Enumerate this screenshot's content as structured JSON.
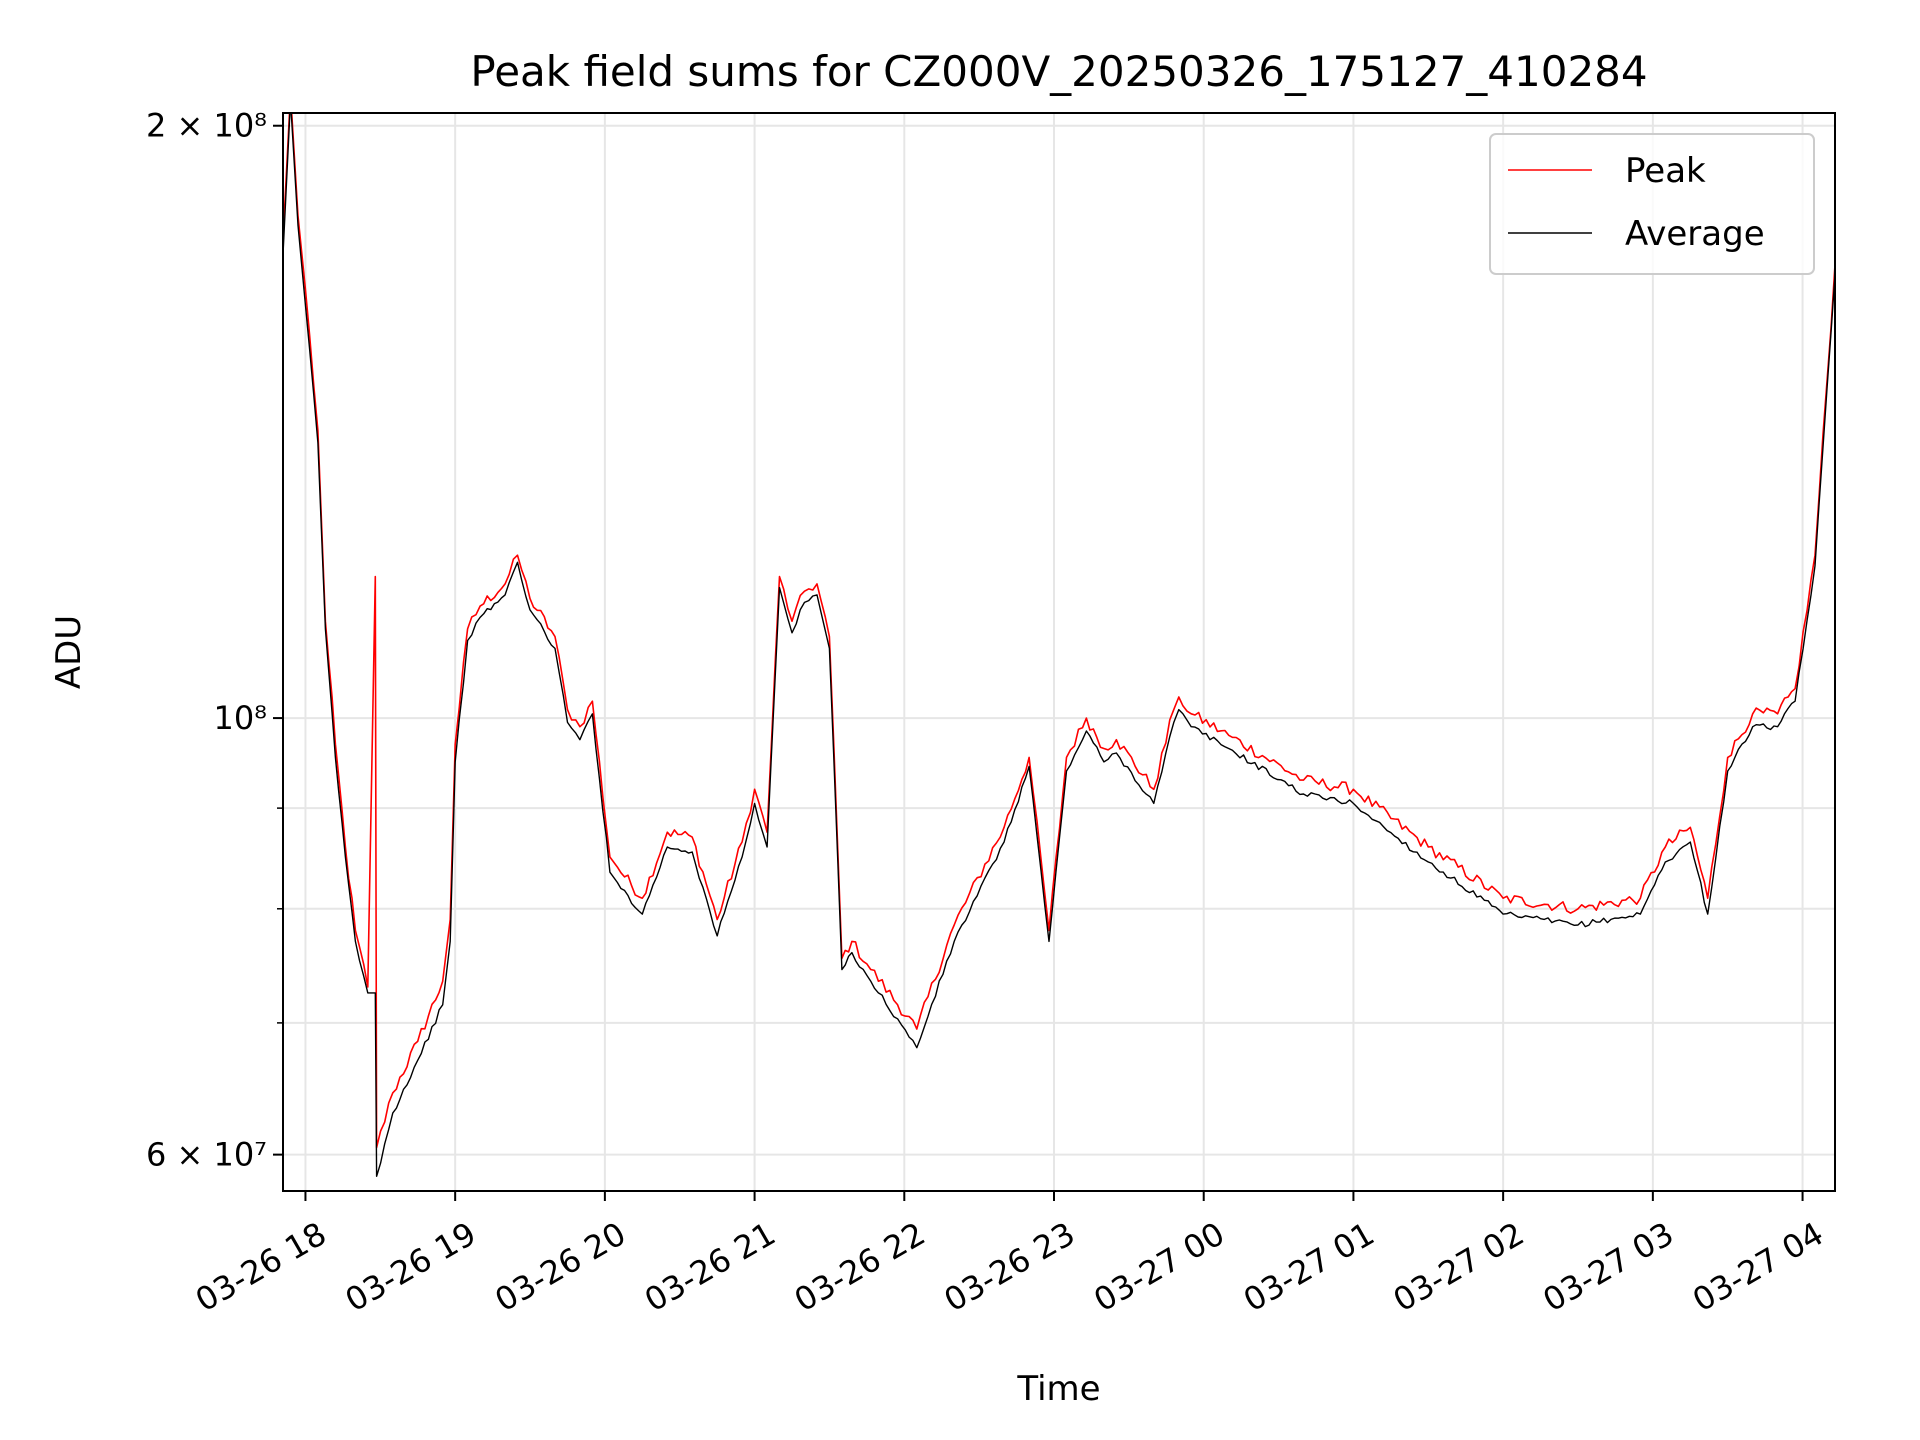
{
  "chart_data": {
    "type": "line",
    "title": "Peak field sums for CZ000V_20250326_175127_410284",
    "xlabel": "Time",
    "ylabel": "ADU",
    "yscale": "log",
    "ylim": [
      57500000,
      203000000
    ],
    "xlim": [
      "03-26 17:51",
      "03-27 04:13"
    ],
    "grid": true,
    "legend_position": "upper-right",
    "colors": {
      "peak": "#ff0000",
      "average": "#000000",
      "grid": "#e6e6e6"
    },
    "x_ticks": [
      "03-26 18",
      "03-26 19",
      "03-26 20",
      "03-26 21",
      "03-26 22",
      "03-26 23",
      "03-27 00",
      "03-27 01",
      "03-27 02",
      "03-27 03",
      "03-27 04"
    ],
    "y_ticks_labeled": [
      {
        "value": 60000000,
        "label": "6 × 10⁷"
      },
      {
        "value": 100000000,
        "label": "10⁸"
      },
      {
        "value": 200000000,
        "label": "2 × 10⁸"
      }
    ],
    "y_ticks_minor": [
      70000000,
      80000000,
      90000000
    ],
    "x": [
      "03-26 17:51",
      "03-26 17:54",
      "03-26 17:57",
      "03-26 18:00",
      "03-26 18:05",
      "03-26 18:08",
      "03-26 18:12",
      "03-26 18:16",
      "03-26 18:20",
      "03-26 18:25",
      "03-26 18:28",
      "03-26 18:28:30",
      "03-26 18:35",
      "03-26 18:45",
      "03-26 18:55",
      "03-26 18:58",
      "03-26 19:00",
      "03-26 19:05",
      "03-26 19:10",
      "03-26 19:20",
      "03-26 19:25",
      "03-26 19:30",
      "03-26 19:40",
      "03-26 19:45",
      "03-26 19:50",
      "03-26 19:55",
      "03-26 20:02",
      "03-26 20:05",
      "03-26 20:15",
      "03-26 20:25",
      "03-26 20:35",
      "03-26 20:45",
      "03-26 20:55",
      "03-26 21:00",
      "03-26 21:05",
      "03-26 21:10",
      "03-26 21:15",
      "03-26 21:20",
      "03-26 21:25",
      "03-26 21:30",
      "03-26 21:35",
      "03-26 21:39",
      "03-26 21:45",
      "03-26 22:05",
      "03-26 22:20",
      "03-26 22:40",
      "03-26 22:50",
      "03-26 22:58",
      "03-26 23:05",
      "03-26 23:13",
      "03-26 23:20",
      "03-26 23:25",
      "03-26 23:40",
      "03-26 23:48",
      "03-26 23:50",
      "03-26 23:55",
      "03-27 00:10",
      "03-27 00:40",
      "03-27 01:00",
      "03-27 01:30",
      "03-27 02:00",
      "03-27 02:30",
      "03-27 02:55",
      "03-27 03:05",
      "03-27 03:15",
      "03-27 03:22",
      "03-27 03:30",
      "03-27 03:40",
      "03-27 03:50",
      "03-27 03:57",
      "03-27 04:05",
      "03-27 04:13"
    ],
    "series": [
      {
        "name": "Peak",
        "values": [
          175000000,
          208000000,
          180000000,
          165000000,
          140000000,
          112000000,
          97000000,
          86000000,
          78000000,
          73000000,
          118000000,
          60500000,
          64500000,
          68500000,
          73500000,
          79000000,
          97000000,
          111000000,
          114000000,
          117000000,
          121000000,
          115000000,
          110000000,
          101000000,
          99000000,
          102000000,
          85000000,
          84000000,
          81000000,
          87500000,
          87000000,
          79000000,
          86500000,
          92000000,
          87500000,
          118000000,
          112000000,
          116000000,
          117000000,
          110000000,
          75500000,
          77000000,
          75000000,
          69500000,
          78500000,
          88000000,
          95500000,
          78000000,
          95500000,
          100000000,
          96500000,
          97500000,
          92000000,
          101000000,
          102500000,
          100500000,
          98000000,
          93000000,
          92000000,
          86000000,
          81000000,
          80000000,
          81000000,
          86000000,
          88000000,
          81000000,
          95500000,
          100500000,
          100500000,
          103500000,
          121000000,
          170000000
        ]
      },
      {
        "name": "Average",
        "values": [
          172000000,
          206000000,
          178000000,
          162000000,
          138000000,
          111000000,
          95500000,
          85000000,
          77000000,
          72500000,
          72500000,
          58500000,
          63000000,
          67000000,
          71500000,
          77000000,
          95000000,
          109500000,
          112500000,
          115500000,
          120000000,
          113500000,
          108500000,
          99500000,
          97500000,
          100500000,
          83500000,
          82500000,
          79500000,
          86000000,
          85500000,
          77500000,
          85000000,
          90500000,
          86000000,
          116500000,
          110500000,
          114500000,
          115500000,
          108500000,
          74500000,
          76000000,
          74000000,
          68000000,
          77000000,
          86500000,
          94500000,
          77000000,
          94000000,
          98500000,
          95000000,
          96000000,
          90500000,
          99500000,
          101000000,
          99000000,
          96500000,
          91500000,
          90500000,
          84500000,
          79500000,
          78500000,
          79500000,
          84500000,
          86500000,
          79500000,
          94000000,
          99000000,
          99000000,
          102000000,
          119500000,
          168000000
        ]
      }
    ]
  }
}
